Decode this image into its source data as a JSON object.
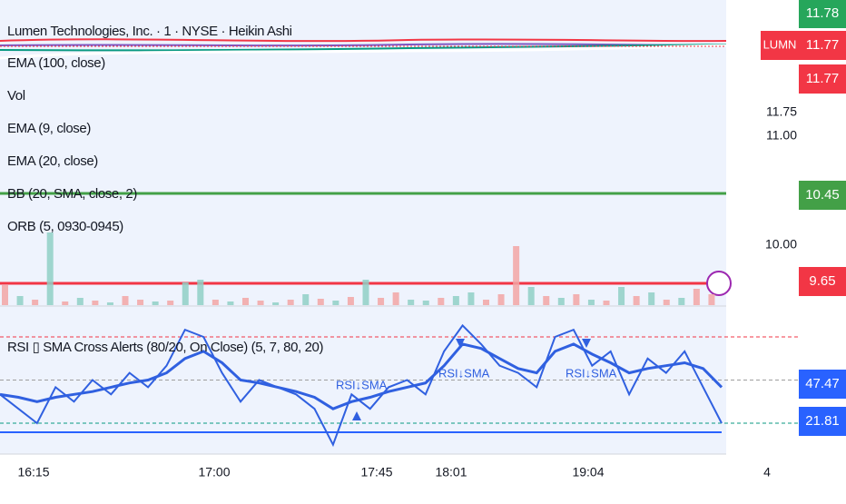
{
  "header": {
    "title": "Lumen Technologies, Inc. · 1 · NYSE · Heikin Ashi",
    "indicators": [
      "EMA (100, close)",
      "Vol",
      "EMA (9, close)",
      "EMA (20, close)",
      "BB (20, SMA, close, 2)",
      "ORB (5, 0930-0945)"
    ]
  },
  "price_badges": [
    {
      "label": "11.78",
      "color": "#26a65b"
    },
    {
      "label": "LUMN",
      "color": "#f23645"
    },
    {
      "label": "11.77",
      "color": "#f23645"
    },
    {
      "label": "11.77",
      "color": "#f23645"
    },
    {
      "label": "10.45",
      "color": "#43a047"
    },
    {
      "label": "9.65",
      "color": "#f23645"
    },
    {
      "label": "47.47",
      "color": "#2962ff"
    },
    {
      "label": "21.81",
      "color": "#2962ff"
    }
  ],
  "price_ticks": [
    "11.75",
    "11.00",
    "10.00"
  ],
  "time_axis": [
    "16:15",
    "17:00",
    "17:45",
    "18:01",
    "19:04",
    "4"
  ],
  "volume": {
    "up_color": "#8fcfc6",
    "down_color": "#f2a5a5",
    "values": [
      22,
      10,
      6,
      80,
      4,
      8,
      5,
      3,
      10,
      6,
      4,
      5,
      25,
      28,
      6,
      4,
      8,
      5,
      3,
      6,
      12,
      7,
      5,
      9,
      28,
      8,
      14,
      6,
      5,
      8,
      10,
      14,
      6,
      12,
      65,
      20,
      10,
      8,
      12,
      6,
      5,
      20,
      10,
      14,
      6,
      8,
      18,
      12
    ],
    "up": [
      false,
      true,
      false,
      true,
      false,
      true,
      false,
      true,
      false,
      false,
      true,
      false,
      true,
      true,
      false,
      true,
      false,
      false,
      true,
      false,
      true,
      false,
      true,
      false,
      true,
      false,
      false,
      true,
      true,
      false,
      true,
      true,
      false,
      false,
      false,
      true,
      false,
      true,
      false,
      true,
      false,
      true,
      false,
      true,
      false,
      true,
      false,
      false
    ]
  },
  "rsi": {
    "label": "RSI ▯ SMA Cross Alerts (80/20, On Close) (5, 7, 80, 20)",
    "annotations": [
      "RSI↓SMA",
      "RSI↓SMA",
      "RSI↓SMA"
    ],
    "color": "#3060e0",
    "levels": [
      80,
      50,
      20
    ],
    "fast": [
      40,
      30,
      20,
      45,
      35,
      50,
      40,
      55,
      45,
      60,
      85,
      80,
      55,
      35,
      50,
      45,
      40,
      30,
      5,
      40,
      30,
      45,
      50,
      40,
      70,
      88,
      75,
      60,
      55,
      45,
      80,
      85,
      60,
      70,
      40,
      65,
      55,
      70,
      45,
      20
    ],
    "slow": [
      40,
      38,
      35,
      38,
      40,
      42,
      45,
      48,
      50,
      55,
      65,
      70,
      62,
      50,
      48,
      45,
      42,
      38,
      30,
      35,
      38,
      42,
      45,
      48,
      60,
      75,
      72,
      65,
      58,
      55,
      70,
      75,
      68,
      62,
      55,
      58,
      60,
      62,
      58,
      45
    ]
  }
}
